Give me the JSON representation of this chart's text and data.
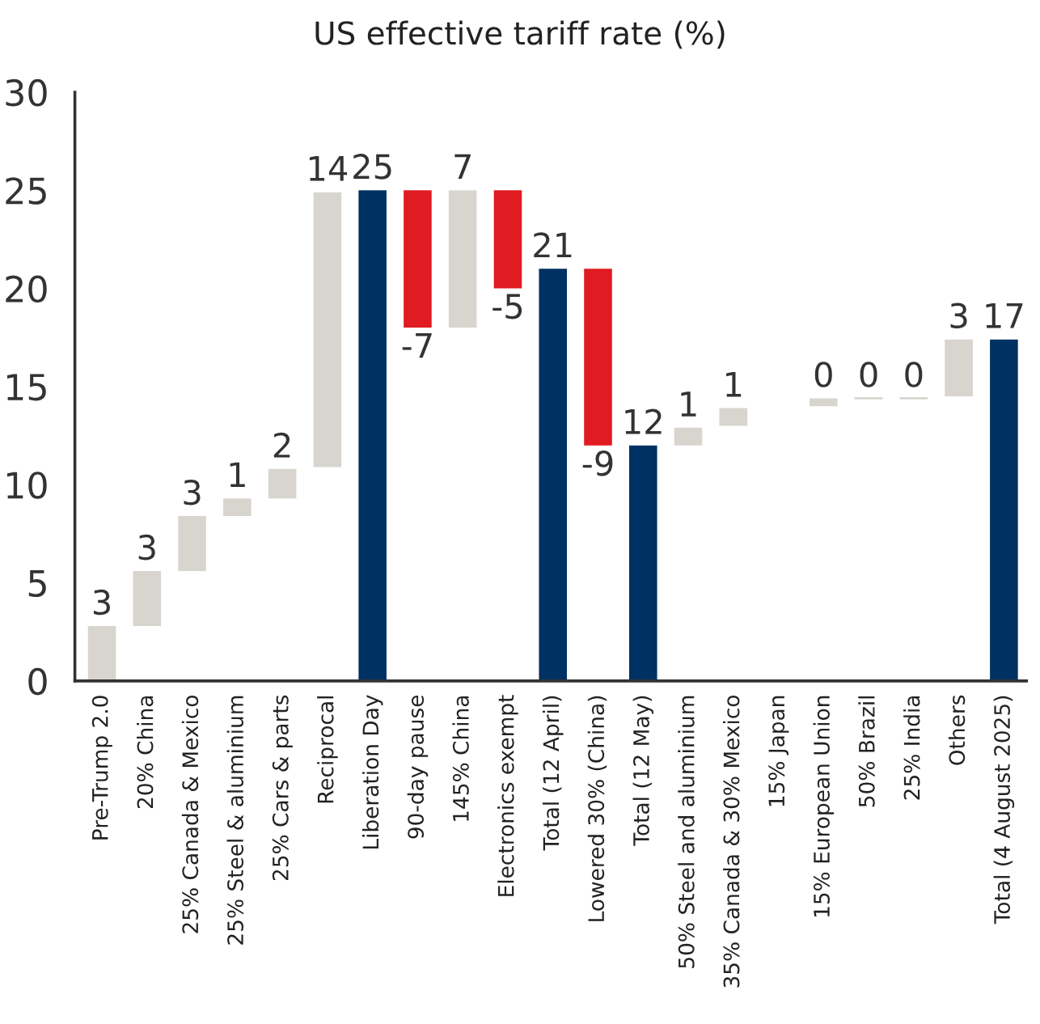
{
  "chart_data": {
    "type": "bar",
    "title": "US effective tariff rate (%)",
    "categories": [
      "Pre-Trump 2.0",
      "20% China",
      "25% Canada & Mexico",
      "25% Steel & aluminium",
      "25% Cars & parts",
      "Reciprocal",
      "Liberation Day",
      "90-day pause",
      "145% China",
      "Electronics exempt",
      "Total (12 April)",
      "Lowered 30% (China)",
      "Total (12 May)",
      "50% Steel and aluminium",
      "35% Canada & 30% Mexico",
      "15% Japan",
      "15% European Union",
      "50% Brazil",
      "25% India",
      "Others",
      "Total (4 August 2025)"
    ],
    "base": [
      0,
      2.8,
      5.6,
      8.4,
      9.3,
      10.9,
      0,
      25,
      18,
      25,
      0,
      21,
      0,
      12,
      13,
      null,
      14.0,
      14.4,
      14.4,
      14.5,
      0
    ],
    "values": [
      2.8,
      2.8,
      2.8,
      0.9,
      1.5,
      14.0,
      25,
      -7,
      7,
      -5,
      21,
      -9,
      12,
      0.9,
      0.9,
      null,
      0.4,
      0,
      0,
      2.9,
      17.4
    ],
    "value_labels": [
      "3",
      "3",
      "3",
      "1",
      "2",
      "14",
      "25",
      "-7",
      "7",
      "-5",
      "21",
      "-9",
      "12",
      "1",
      "1",
      null,
      "0",
      "0",
      "0",
      "3",
      "17"
    ],
    "colors": [
      "#d8d5cf",
      "#d8d5cf",
      "#d8d5cf",
      "#d8d5cf",
      "#d8d5cf",
      "#d8d5cf",
      "#003163",
      "#e01b22",
      "#d8d5cf",
      "#e01b22",
      "#003163",
      "#e01b22",
      "#003163",
      "#d8d5cf",
      "#d8d5cf",
      "#d8d5cf",
      "#d8d5cf",
      "#d8d5cf",
      "#d8d5cf",
      "#d8d5cf",
      "#003163"
    ],
    "ylim": [
      0,
      30
    ],
    "yticks": [
      0,
      5,
      10,
      15,
      20,
      25,
      30
    ],
    "grid": false,
    "legend": false
  }
}
